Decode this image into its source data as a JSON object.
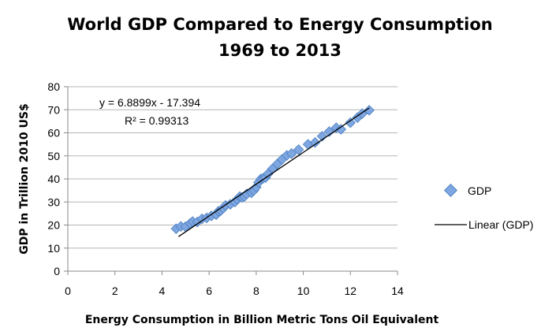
{
  "chart_data": {
    "type": "scatter",
    "title_line1": "World GDP Compared to Energy Consumption",
    "title_line2": "1969 to 2013",
    "xlabel": "Energy Consumption in Billion Metric Tons Oil Equivalent",
    "ylabel": "GDP in Trillion 2010 US$",
    "xlim": [
      0,
      14
    ],
    "ylim": [
      0,
      80
    ],
    "x_ticks": [
      "0",
      "2",
      "4",
      "6",
      "8",
      "10",
      "12",
      "14"
    ],
    "y_ticks": [
      "0",
      "10",
      "20",
      "30",
      "40",
      "50",
      "60",
      "70",
      "80"
    ],
    "grid": "horizontal",
    "legend_position": "right",
    "legend": [
      {
        "label": "GDP",
        "kind": "marker"
      },
      {
        "label": "Linear (GDP)",
        "kind": "line"
      }
    ],
    "equation": "y = 6.8899x - 17.394",
    "r_squared": "R² = 0.99313",
    "trendline": {
      "slope": 6.8899,
      "intercept": -17.394,
      "x_range": [
        4.7,
        12.8
      ]
    },
    "marker_color": "#7EA6E0",
    "marker_edge_color": "#4A7FC1",
    "series": [
      {
        "name": "GDP",
        "points": [
          [
            4.6,
            18.4
          ],
          [
            4.8,
            19.4
          ],
          [
            5.0,
            19.3
          ],
          [
            5.2,
            20.7
          ],
          [
            5.3,
            21.5
          ],
          [
            5.5,
            21.3
          ],
          [
            5.7,
            22.7
          ],
          [
            5.9,
            23.1
          ],
          [
            6.1,
            24.0
          ],
          [
            6.3,
            24.5
          ],
          [
            6.4,
            26.0
          ],
          [
            6.5,
            26.3
          ],
          [
            6.6,
            27.3
          ],
          [
            6.7,
            28.5
          ],
          [
            6.9,
            29.0
          ],
          [
            7.1,
            30.0
          ],
          [
            7.2,
            31.2
          ],
          [
            7.3,
            32.3
          ],
          [
            7.4,
            32.0
          ],
          [
            7.5,
            32.4
          ],
          [
            7.6,
            33.5
          ],
          [
            7.8,
            34.0
          ],
          [
            7.9,
            35.0
          ],
          [
            8.0,
            36.4
          ],
          [
            8.1,
            38.5
          ],
          [
            8.2,
            40.0
          ],
          [
            8.3,
            40.3
          ],
          [
            8.4,
            40.6
          ],
          [
            8.5,
            42.2
          ],
          [
            8.7,
            44.5
          ],
          [
            8.9,
            46.5
          ],
          [
            9.1,
            48.5
          ],
          [
            9.3,
            50.2
          ],
          [
            9.5,
            51.0
          ],
          [
            9.8,
            52.7
          ],
          [
            10.2,
            55.0
          ],
          [
            10.5,
            55.8
          ],
          [
            10.8,
            58.5
          ],
          [
            11.1,
            60.5
          ],
          [
            11.4,
            62.2
          ],
          [
            11.6,
            61.5
          ],
          [
            12.0,
            64.4
          ],
          [
            12.3,
            66.6
          ],
          [
            12.5,
            68.3
          ],
          [
            12.8,
            69.8
          ]
        ]
      }
    ]
  }
}
